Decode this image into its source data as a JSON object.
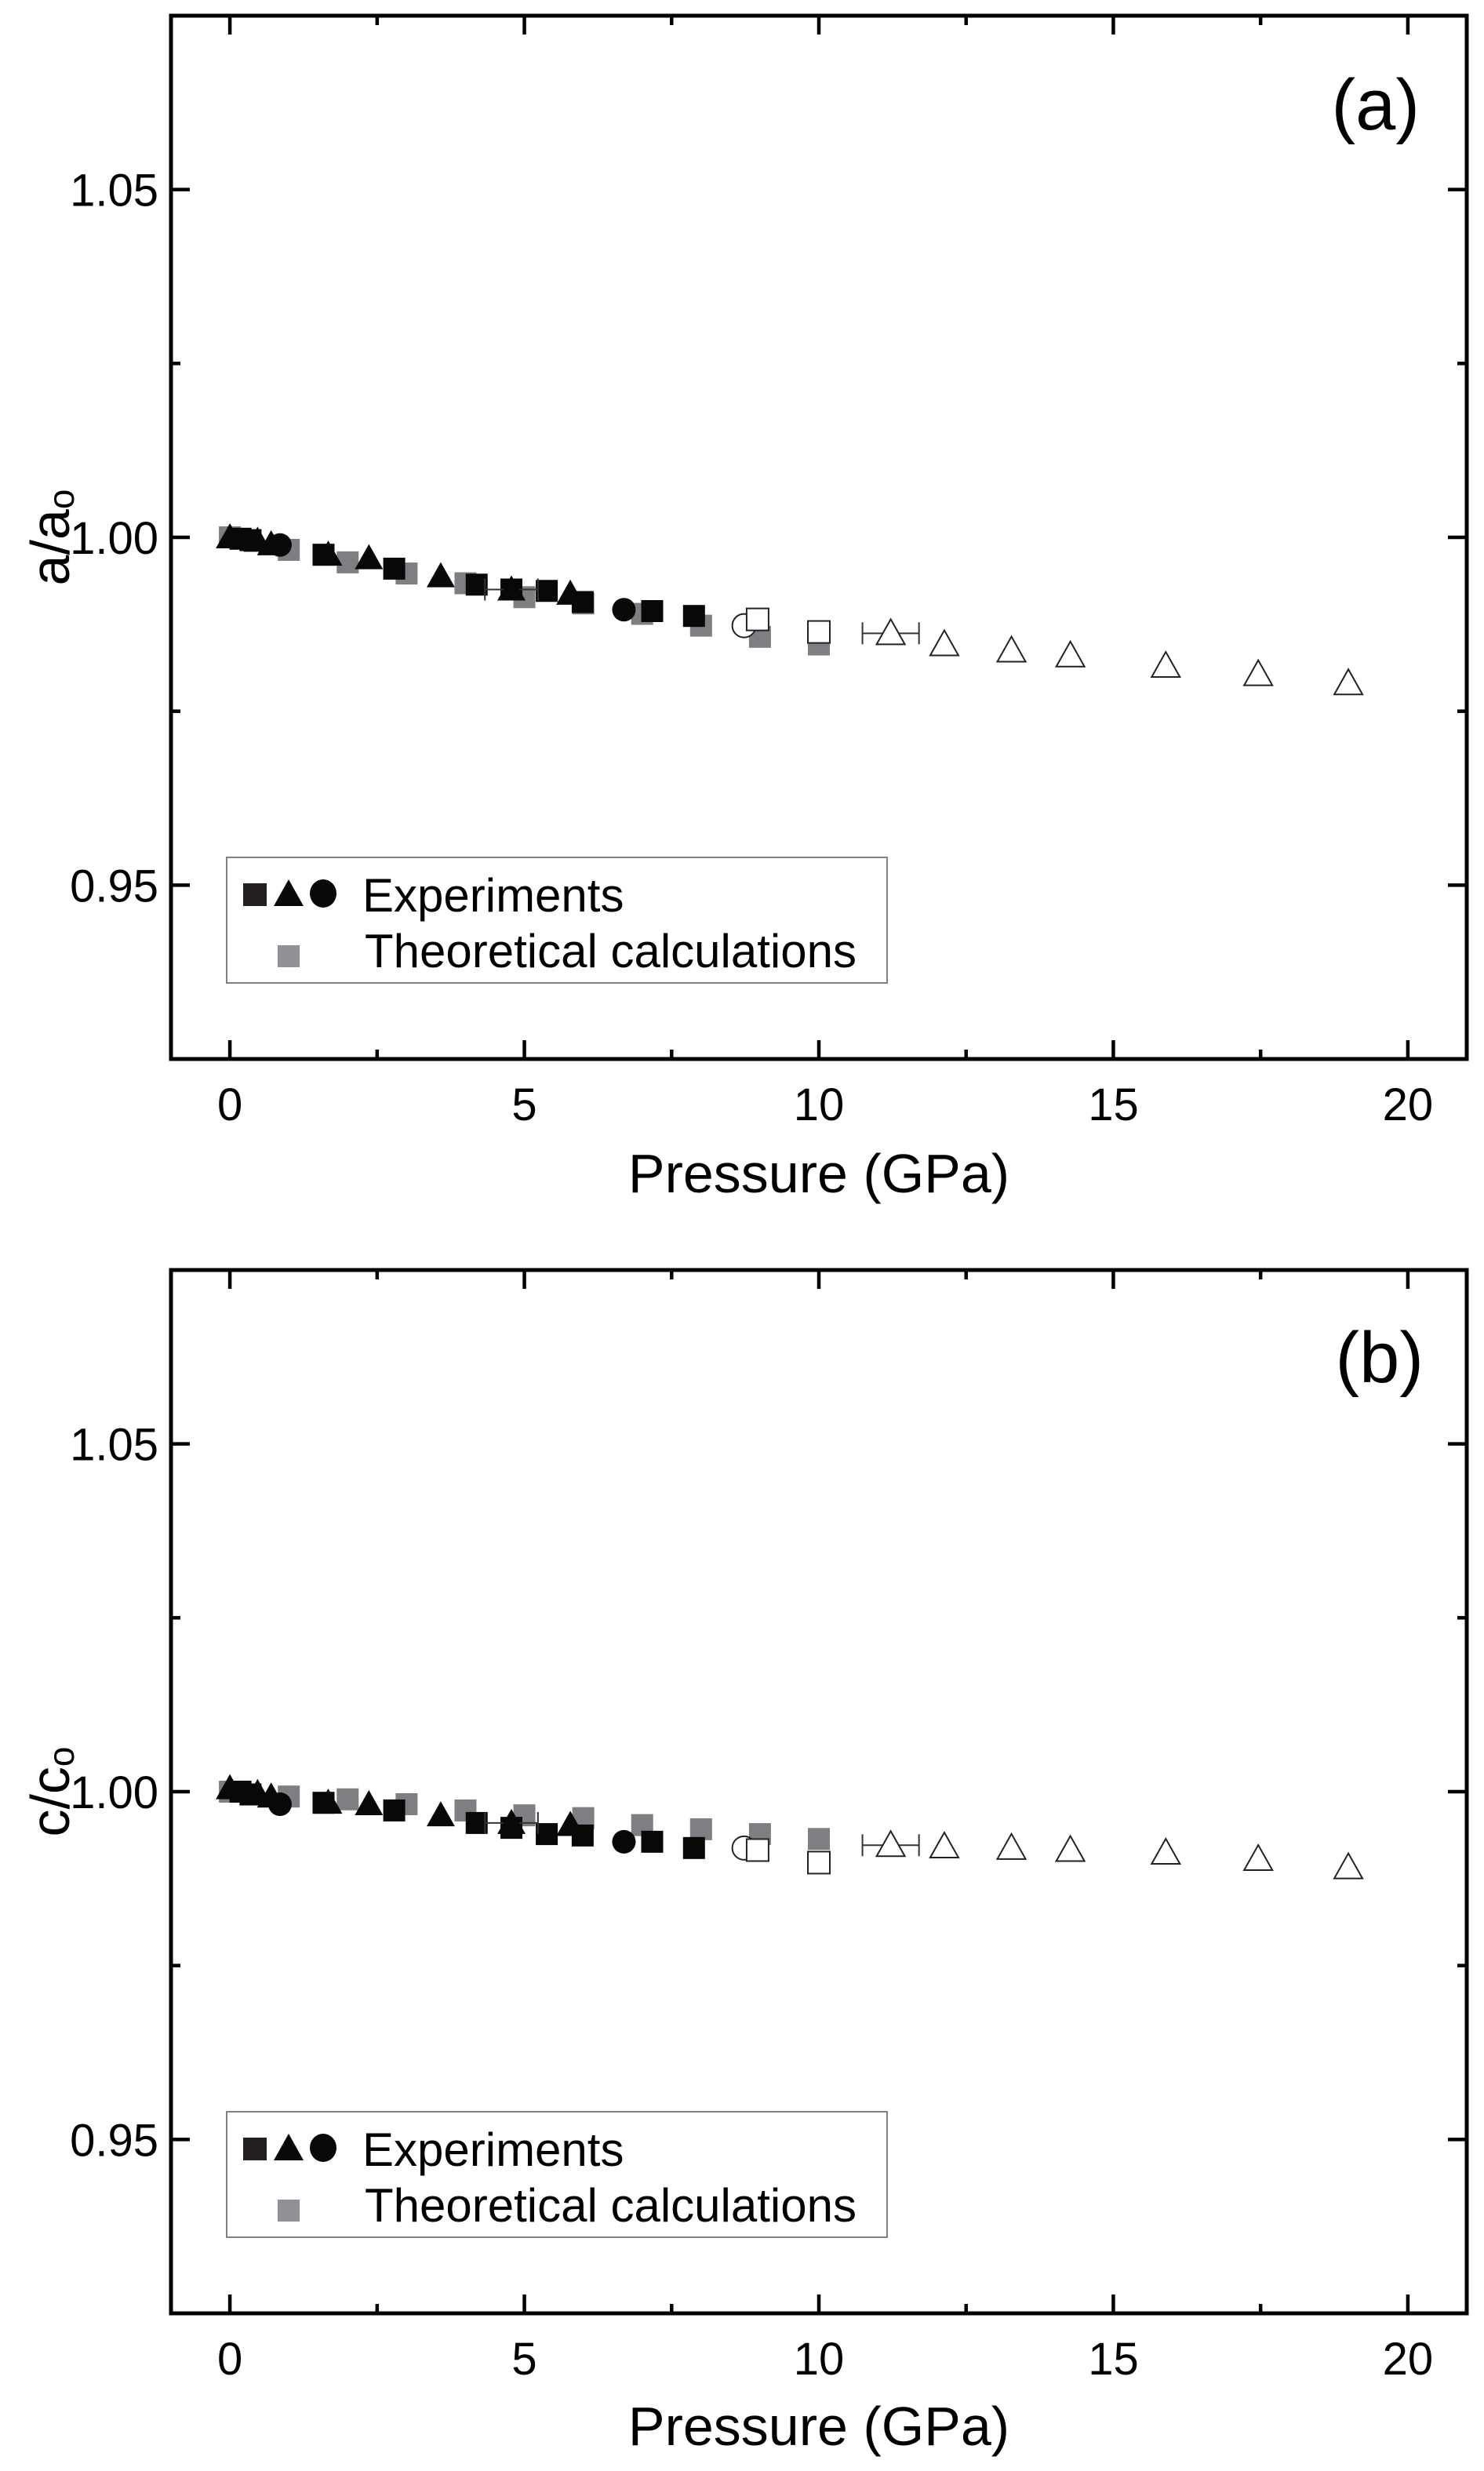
{
  "chart_data": [
    {
      "type": "scatter",
      "panel_label": "(a)",
      "xlabel": "Pressure (GPa)",
      "ylabel_main": "a/a",
      "ylabel_sub": "o",
      "xlim": [
        -1,
        21
      ],
      "ylim": [
        0.925,
        1.075
      ],
      "x_ticks": [
        0,
        5,
        10,
        15,
        20
      ],
      "x_tick_labels": [
        "0",
        "5",
        "10",
        "15",
        "20"
      ],
      "x_minor_ticks": [
        2.5,
        7.5,
        12.5,
        17.5
      ],
      "y_ticks": [
        0.95,
        1.0,
        1.05
      ],
      "y_tick_labels": [
        "0.95",
        "1.00",
        "1.05"
      ],
      "y_minor_ticks": [
        0.975,
        1.025
      ],
      "grid": false,
      "legend": {
        "placement": "bottom-left",
        "entries": [
          {
            "label": "Experiments",
            "symbols": [
              "filled-square",
              "filled-triangle",
              "filled-circle"
            ],
            "color": "#0a0806"
          },
          {
            "label": "Theoretical calculations",
            "symbols": [
              "filled-square"
            ],
            "color": "#808084"
          }
        ]
      },
      "series": [
        {
          "name": "Theoretical calculations",
          "marker": "square",
          "fill": "#7f7f83",
          "stroke": "none",
          "x": [
            0,
            1,
            2,
            3,
            4,
            5,
            6,
            7,
            8,
            9,
            10
          ],
          "y": [
            1.0,
            0.9982,
            0.9964,
            0.9948,
            0.9934,
            0.9914,
            0.9905,
            0.989,
            0.9873,
            0.9857,
            0.9846
          ]
        },
        {
          "name": "Experiments (squares)",
          "marker": "square",
          "fill": "#0a0806",
          "stroke": "none",
          "x": [
            0.18,
            0.35,
            1.59,
            2.79,
            4.19,
            4.78,
            5.38,
            5.99,
            7.17,
            7.88
          ],
          "y": [
            0.9998,
            0.9996,
            0.9975,
            0.9955,
            0.9932,
            0.9925,
            0.9923,
            0.9907,
            0.9894,
            0.9887
          ]
        },
        {
          "name": "Experiments (triangles)",
          "marker": "triangle",
          "fill": "#0a0806",
          "stroke": "none",
          "x": [
            0,
            0.47,
            0.7,
            1.67,
            2.36,
            3.58,
            4.78,
            5.78
          ],
          "y": [
            1.0,
            0.9995,
            0.999,
            0.9975,
            0.997,
            0.9944,
            0.9925,
            0.9919
          ],
          "xerr": [
            0,
            0,
            0,
            0,
            0,
            0,
            0.45,
            0
          ]
        },
        {
          "name": "Experiments (circles)",
          "marker": "circle",
          "fill": "#0a0806",
          "stroke": "none",
          "x": [
            0.85,
            6.69
          ],
          "y": [
            0.9989,
            0.9896
          ]
        },
        {
          "name": "Experiments open circle",
          "marker": "circle",
          "fill": "#ffffff",
          "stroke": "#222222",
          "x": [
            8.73
          ],
          "y": [
            0.9873
          ]
        },
        {
          "name": "Experiments open squares",
          "marker": "square",
          "fill": "#ffffff",
          "stroke": "#222222",
          "x": [
            8.96,
            10.0
          ],
          "y": [
            0.9882,
            0.9864
          ]
        },
        {
          "name": "Experiments open triangles",
          "marker": "triangle",
          "fill": "#ffffff",
          "stroke": "#222222",
          "x": [
            11.22,
            12.13,
            13.27,
            14.27,
            15.89,
            17.46,
            18.99
          ],
          "y": [
            0.9862,
            0.9846,
            0.9837,
            0.983,
            0.9815,
            0.9803,
            0.979
          ],
          "xerr": [
            0.48,
            0,
            0,
            0,
            0,
            0,
            0
          ]
        }
      ]
    },
    {
      "type": "scatter",
      "panel_label": "(b)",
      "xlabel": "Pressure (GPa)",
      "ylabel_main": "c/c",
      "ylabel_sub": "o",
      "xlim": [
        -1,
        21
      ],
      "ylim": [
        0.925,
        1.075
      ],
      "x_ticks": [
        0,
        5,
        10,
        15,
        20
      ],
      "x_tick_labels": [
        "0",
        "5",
        "10",
        "15",
        "20"
      ],
      "x_minor_ticks": [
        2.5,
        7.5,
        12.5,
        17.5
      ],
      "y_ticks": [
        0.95,
        1.0,
        1.05
      ],
      "y_tick_labels": [
        "0.95",
        "1.00",
        "1.05"
      ],
      "y_minor_ticks": [
        0.975,
        1.025
      ],
      "grid": false,
      "legend": {
        "placement": "bottom-left",
        "entries": [
          {
            "label": "Experiments",
            "symbols": [
              "filled-square",
              "filled-triangle",
              "filled-circle"
            ],
            "color": "#0a0806"
          },
          {
            "label": "Theoretical calculations",
            "symbols": [
              "filled-square"
            ],
            "color": "#808084"
          }
        ]
      },
      "series": [
        {
          "name": "Theoretical calculations",
          "marker": "square",
          "fill": "#7f7f83",
          "stroke": "none",
          "x": [
            0,
            1,
            2,
            3,
            4,
            5,
            6,
            7,
            8,
            9,
            10
          ],
          "y": [
            1.0,
            0.9993,
            0.9989,
            0.9982,
            0.9973,
            0.9966,
            0.9962,
            0.9952,
            0.9946,
            0.9939,
            0.9932
          ]
        },
        {
          "name": "Experiments (squares)",
          "marker": "square",
          "fill": "#0a0806",
          "stroke": "none",
          "x": [
            0.18,
            0.35,
            1.59,
            2.79,
            4.19,
            4.78,
            5.38,
            5.99,
            7.17,
            7.88
          ],
          "y": [
            1.0,
            0.9996,
            0.9984,
            0.9973,
            0.9955,
            0.9948,
            0.9939,
            0.9937,
            0.9928,
            0.9919
          ]
        },
        {
          "name": "Experiments (triangles)",
          "marker": "triangle",
          "fill": "#0a0806",
          "stroke": "none",
          "x": [
            0,
            0.47,
            0.7,
            1.67,
            2.36,
            3.58,
            4.78,
            5.78
          ],
          "y": [
            1.0005,
            0.9998,
            0.9993,
            0.9984,
            0.9982,
            0.9966,
            0.9955,
            0.9952
          ],
          "xerr": [
            0,
            0,
            0,
            0,
            0,
            0,
            0.45,
            0
          ]
        },
        {
          "name": "Experiments (circles)",
          "marker": "circle",
          "fill": "#0a0806",
          "stroke": "none",
          "x": [
            0.85,
            6.69
          ],
          "y": [
            0.9982,
            0.9928
          ]
        },
        {
          "name": "Experiments open circle",
          "marker": "circle",
          "fill": "#ffffff",
          "stroke": "#222222",
          "x": [
            8.73
          ],
          "y": [
            0.9919
          ]
        },
        {
          "name": "Experiments open squares",
          "marker": "square",
          "fill": "#ffffff",
          "stroke": "#222222",
          "x": [
            8.96,
            10.0
          ],
          "y": [
            0.9916,
            0.9898
          ]
        },
        {
          "name": "Experiments open triangles",
          "marker": "triangle",
          "fill": "#ffffff",
          "stroke": "#222222",
          "x": [
            11.22,
            12.13,
            13.27,
            14.27,
            15.89,
            17.46,
            18.99
          ],
          "y": [
            0.9923,
            0.9921,
            0.9919,
            0.9916,
            0.9912,
            0.9903,
            0.9891
          ],
          "xerr": [
            0.48,
            0,
            0,
            0,
            0,
            0,
            0
          ]
        }
      ]
    }
  ]
}
